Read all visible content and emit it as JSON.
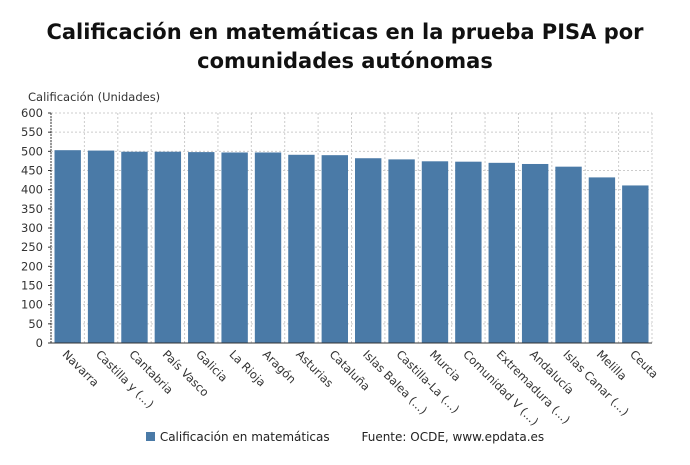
{
  "chart_data": {
    "type": "bar",
    "title": "Calificación en matemáticas en la prueba PISA por comunidades autónomas",
    "ylabel": "Calificación (Unidades)",
    "xlabel": "",
    "ylim": [
      0,
      600
    ],
    "yticks": [
      0,
      50,
      100,
      150,
      200,
      250,
      300,
      350,
      400,
      450,
      500,
      550,
      600
    ],
    "grid": true,
    "color": "#4a7aa7",
    "categories": [
      "Navarra",
      "Castilla y (...)",
      "Cantabria",
      "País Vasco",
      "Galicia",
      "La Rioja",
      "Aragón",
      "Asturias",
      "Cataluña",
      "Islas Balea (...)",
      "Castilla-La (...)",
      "Murcia",
      "Comunidad V (...)",
      "Extremadura (...)",
      "Andalucía",
      "Islas Canar (...)",
      "Melilla",
      "Ceuta"
    ],
    "series": [
      {
        "name": "Calificación en matemáticas",
        "values": [
          503,
          502,
          499,
          499,
          498,
          497,
          497,
          491,
          490,
          482,
          479,
          474,
          473,
          470,
          467,
          460,
          432,
          411
        ]
      }
    ],
    "legend_position": "bottom",
    "source": "Fuente: OCDE, www.epdata.es"
  }
}
